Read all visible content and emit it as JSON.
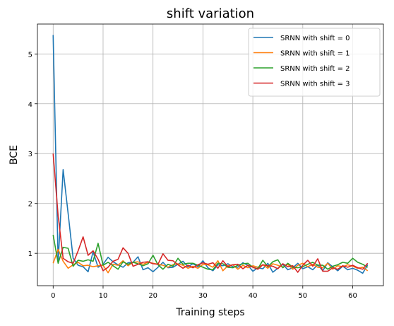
{
  "chart_data": {
    "type": "line",
    "title": "shift variation",
    "xlabel": "Training steps",
    "ylabel": "BCE",
    "xlim": [
      -3.15,
      66.15
    ],
    "ylim": [
      0.35,
      5.6
    ],
    "xticks": [
      0,
      10,
      20,
      30,
      40,
      50,
      60
    ],
    "yticks": [
      1,
      2,
      3,
      4,
      5
    ],
    "grid": true,
    "legend_position": "top-right",
    "series": [
      {
        "name": "SRNN with shift = 0",
        "color": "#1f77b4",
        "values": [
          5.38,
          0.82,
          2.68,
          1.8,
          0.9,
          0.76,
          0.73,
          0.63,
          1.03,
          0.72,
          0.78,
          0.92,
          0.83,
          0.77,
          0.72,
          0.81,
          0.82,
          0.93,
          0.67,
          0.71,
          0.63,
          0.72,
          0.82,
          0.71,
          0.72,
          0.78,
          0.84,
          0.73,
          0.79,
          0.73,
          0.85,
          0.71,
          0.65,
          0.77,
          0.75,
          0.79,
          0.73,
          0.72,
          0.81,
          0.76,
          0.64,
          0.71,
          0.69,
          0.8,
          0.62,
          0.7,
          0.78,
          0.67,
          0.71,
          0.8,
          0.69,
          0.73,
          0.67,
          0.77,
          0.65,
          0.81,
          0.73,
          0.65,
          0.74,
          0.67,
          0.7,
          0.66,
          0.6,
          0.77
        ]
      },
      {
        "name": "SRNN with shift = 1",
        "color": "#ff7f0e",
        "values": [
          0.8,
          1.08,
          0.84,
          0.7,
          0.77,
          0.82,
          0.75,
          0.76,
          0.73,
          0.75,
          0.76,
          0.61,
          0.78,
          0.76,
          0.85,
          0.75,
          0.82,
          0.83,
          0.78,
          0.82,
          0.8,
          0.78,
          0.76,
          0.72,
          0.77,
          0.79,
          0.76,
          0.7,
          0.74,
          0.7,
          0.78,
          0.77,
          0.72,
          0.85,
          0.65,
          0.75,
          0.77,
          0.68,
          0.76,
          0.71,
          0.75,
          0.72,
          0.77,
          0.7,
          0.79,
          0.76,
          0.72,
          0.78,
          0.68,
          0.76,
          0.8,
          0.73,
          0.78,
          0.72,
          0.71,
          0.8,
          0.68,
          0.75,
          0.73,
          0.77,
          0.74,
          0.7,
          0.72,
          0.65
        ]
      },
      {
        "name": "SRNN with shift = 2",
        "color": "#2ca02c",
        "values": [
          1.37,
          0.8,
          1.12,
          1.1,
          0.74,
          0.86,
          0.84,
          0.87,
          0.84,
          1.2,
          0.76,
          0.82,
          0.75,
          0.68,
          0.83,
          0.78,
          0.82,
          0.79,
          0.75,
          0.79,
          0.96,
          0.77,
          0.68,
          0.78,
          0.74,
          0.9,
          0.78,
          0.8,
          0.8,
          0.76,
          0.72,
          0.68,
          0.67,
          0.8,
          0.79,
          0.72,
          0.71,
          0.76,
          0.79,
          0.8,
          0.72,
          0.69,
          0.86,
          0.73,
          0.83,
          0.87,
          0.71,
          0.8,
          0.72,
          0.71,
          0.73,
          0.78,
          0.82,
          0.76,
          0.76,
          0.68,
          0.74,
          0.77,
          0.82,
          0.8,
          0.9,
          0.82,
          0.78,
          0.72
        ]
      },
      {
        "name": "SRNN with shift = 3",
        "color": "#d62728",
        "values": [
          3.0,
          1.75,
          0.9,
          0.83,
          0.8,
          1.05,
          1.33,
          0.96,
          1.05,
          0.88,
          0.65,
          0.72,
          0.84,
          0.88,
          1.11,
          1.0,
          0.74,
          0.78,
          0.82,
          0.83,
          0.79,
          0.78,
          0.99,
          0.86,
          0.85,
          0.77,
          0.7,
          0.76,
          0.71,
          0.77,
          0.81,
          0.78,
          0.81,
          0.7,
          0.85,
          0.73,
          0.77,
          0.78,
          0.69,
          0.76,
          0.72,
          0.68,
          0.77,
          0.75,
          0.74,
          0.69,
          0.79,
          0.73,
          0.75,
          0.62,
          0.76,
          0.86,
          0.74,
          0.89,
          0.64,
          0.64,
          0.71,
          0.68,
          0.75,
          0.72,
          0.76,
          0.71,
          0.68,
          0.8
        ]
      }
    ]
  }
}
